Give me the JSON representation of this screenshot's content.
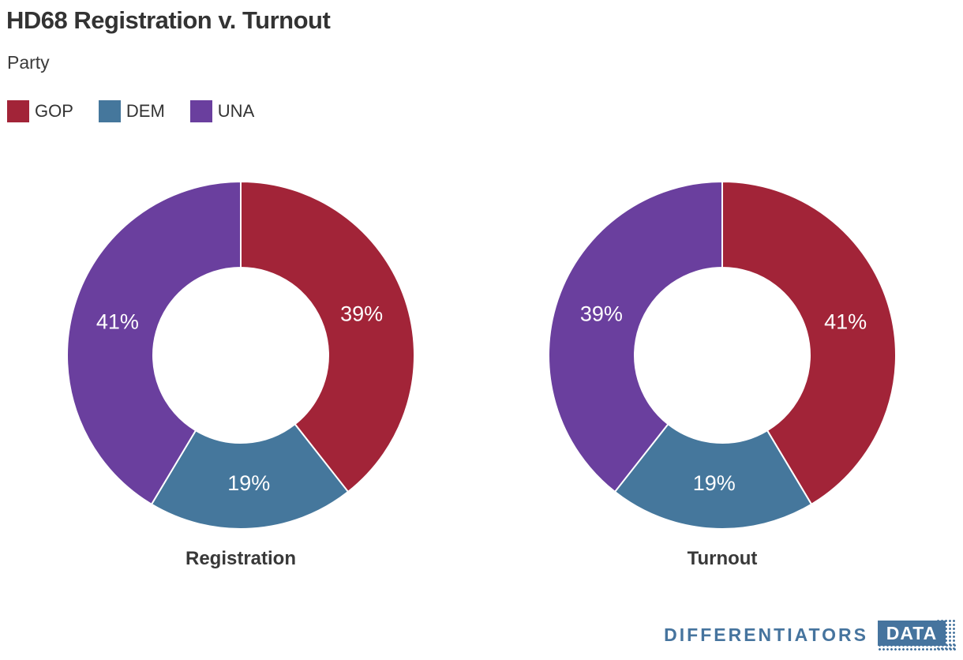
{
  "header": {
    "title": "HD68 Registration v. Turnout",
    "subtitle": "Party"
  },
  "legend": {
    "items": [
      {
        "label": "GOP",
        "color": "#A22438"
      },
      {
        "label": "DEM",
        "color": "#45779C"
      },
      {
        "label": "UNA",
        "color": "#6A3F9E"
      }
    ]
  },
  "chart_data": {
    "type": "pie",
    "variant": "donut",
    "legend_position": "top-left",
    "legend_title": "Party",
    "categories": [
      "GOP",
      "DEM",
      "UNA"
    ],
    "colors": [
      "#A22438",
      "#45779C",
      "#6A3F9E"
    ],
    "start_angle_deg": 0,
    "direction": "clockwise",
    "charts": [
      {
        "title": "Registration",
        "values": [
          39,
          19,
          41
        ],
        "labels": [
          "39%",
          "19%",
          "41%"
        ]
      },
      {
        "title": "Turnout",
        "values": [
          41,
          19,
          39
        ],
        "labels": [
          "41%",
          "19%",
          "39%"
        ]
      }
    ]
  },
  "footer": {
    "brand_text": "DIFFERENTIATORS",
    "brand_badge": "DATA",
    "brand_color": "#46749E"
  }
}
